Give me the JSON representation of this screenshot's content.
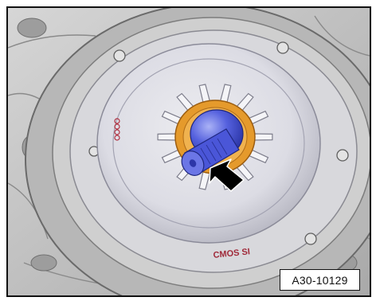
{
  "figure": {
    "reference_code": "A30-10129",
    "housing_marking": "CMOS SI",
    "colors": {
      "frame": "#111111",
      "housing": "#c9c9c9",
      "housing_dark": "#8a8a8a",
      "plate": "#e7e7ea",
      "plate_shadow": "#b9b9c4",
      "seal_ring": "#e59a2c",
      "shaft": "#4a56d8",
      "shaft_light": "#8d97f0",
      "arrow": "#000000",
      "logo_rings": "#b03040"
    },
    "icons": [
      "callout-arrow-icon",
      "brand-rings-logo-icon"
    ]
  }
}
